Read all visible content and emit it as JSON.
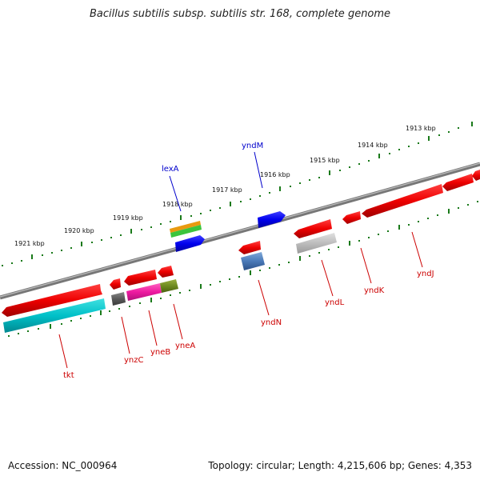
{
  "title": "Bacillus subtilis subsp. subtilis str. 168, complete genome",
  "footer": {
    "accession": "Accession: NC_000964",
    "summary": "Topology: circular; Length: 4,215,606 bp; Genes: 4,353"
  },
  "scale": {
    "ticks": [
      {
        "label": "1921 kbp"
      },
      {
        "label": "1920 kbp"
      },
      {
        "label": "1919 kbp"
      },
      {
        "label": "1918 kbp"
      },
      {
        "label": "1917 kbp"
      },
      {
        "label": "1916 kbp"
      },
      {
        "label": "1915 kbp"
      },
      {
        "label": "1914 kbp"
      },
      {
        "label": "1913 kbp"
      }
    ]
  },
  "genes": [
    {
      "name": "tkt",
      "color": "#cc0000"
    },
    {
      "name": "ynzC",
      "color": "#cc0000"
    },
    {
      "name": "yneB",
      "color": "#cc0000"
    },
    {
      "name": "yneA",
      "color": "#cc0000"
    },
    {
      "name": "lexA",
      "color": "#0000cc"
    },
    {
      "name": "yndM",
      "color": "#0000cc"
    },
    {
      "name": "yndN",
      "color": "#cc0000"
    },
    {
      "name": "yndL",
      "color": "#cc0000"
    },
    {
      "name": "yndK",
      "color": "#cc0000"
    },
    {
      "name": "yndJ",
      "color": "#cc0000"
    }
  ]
}
